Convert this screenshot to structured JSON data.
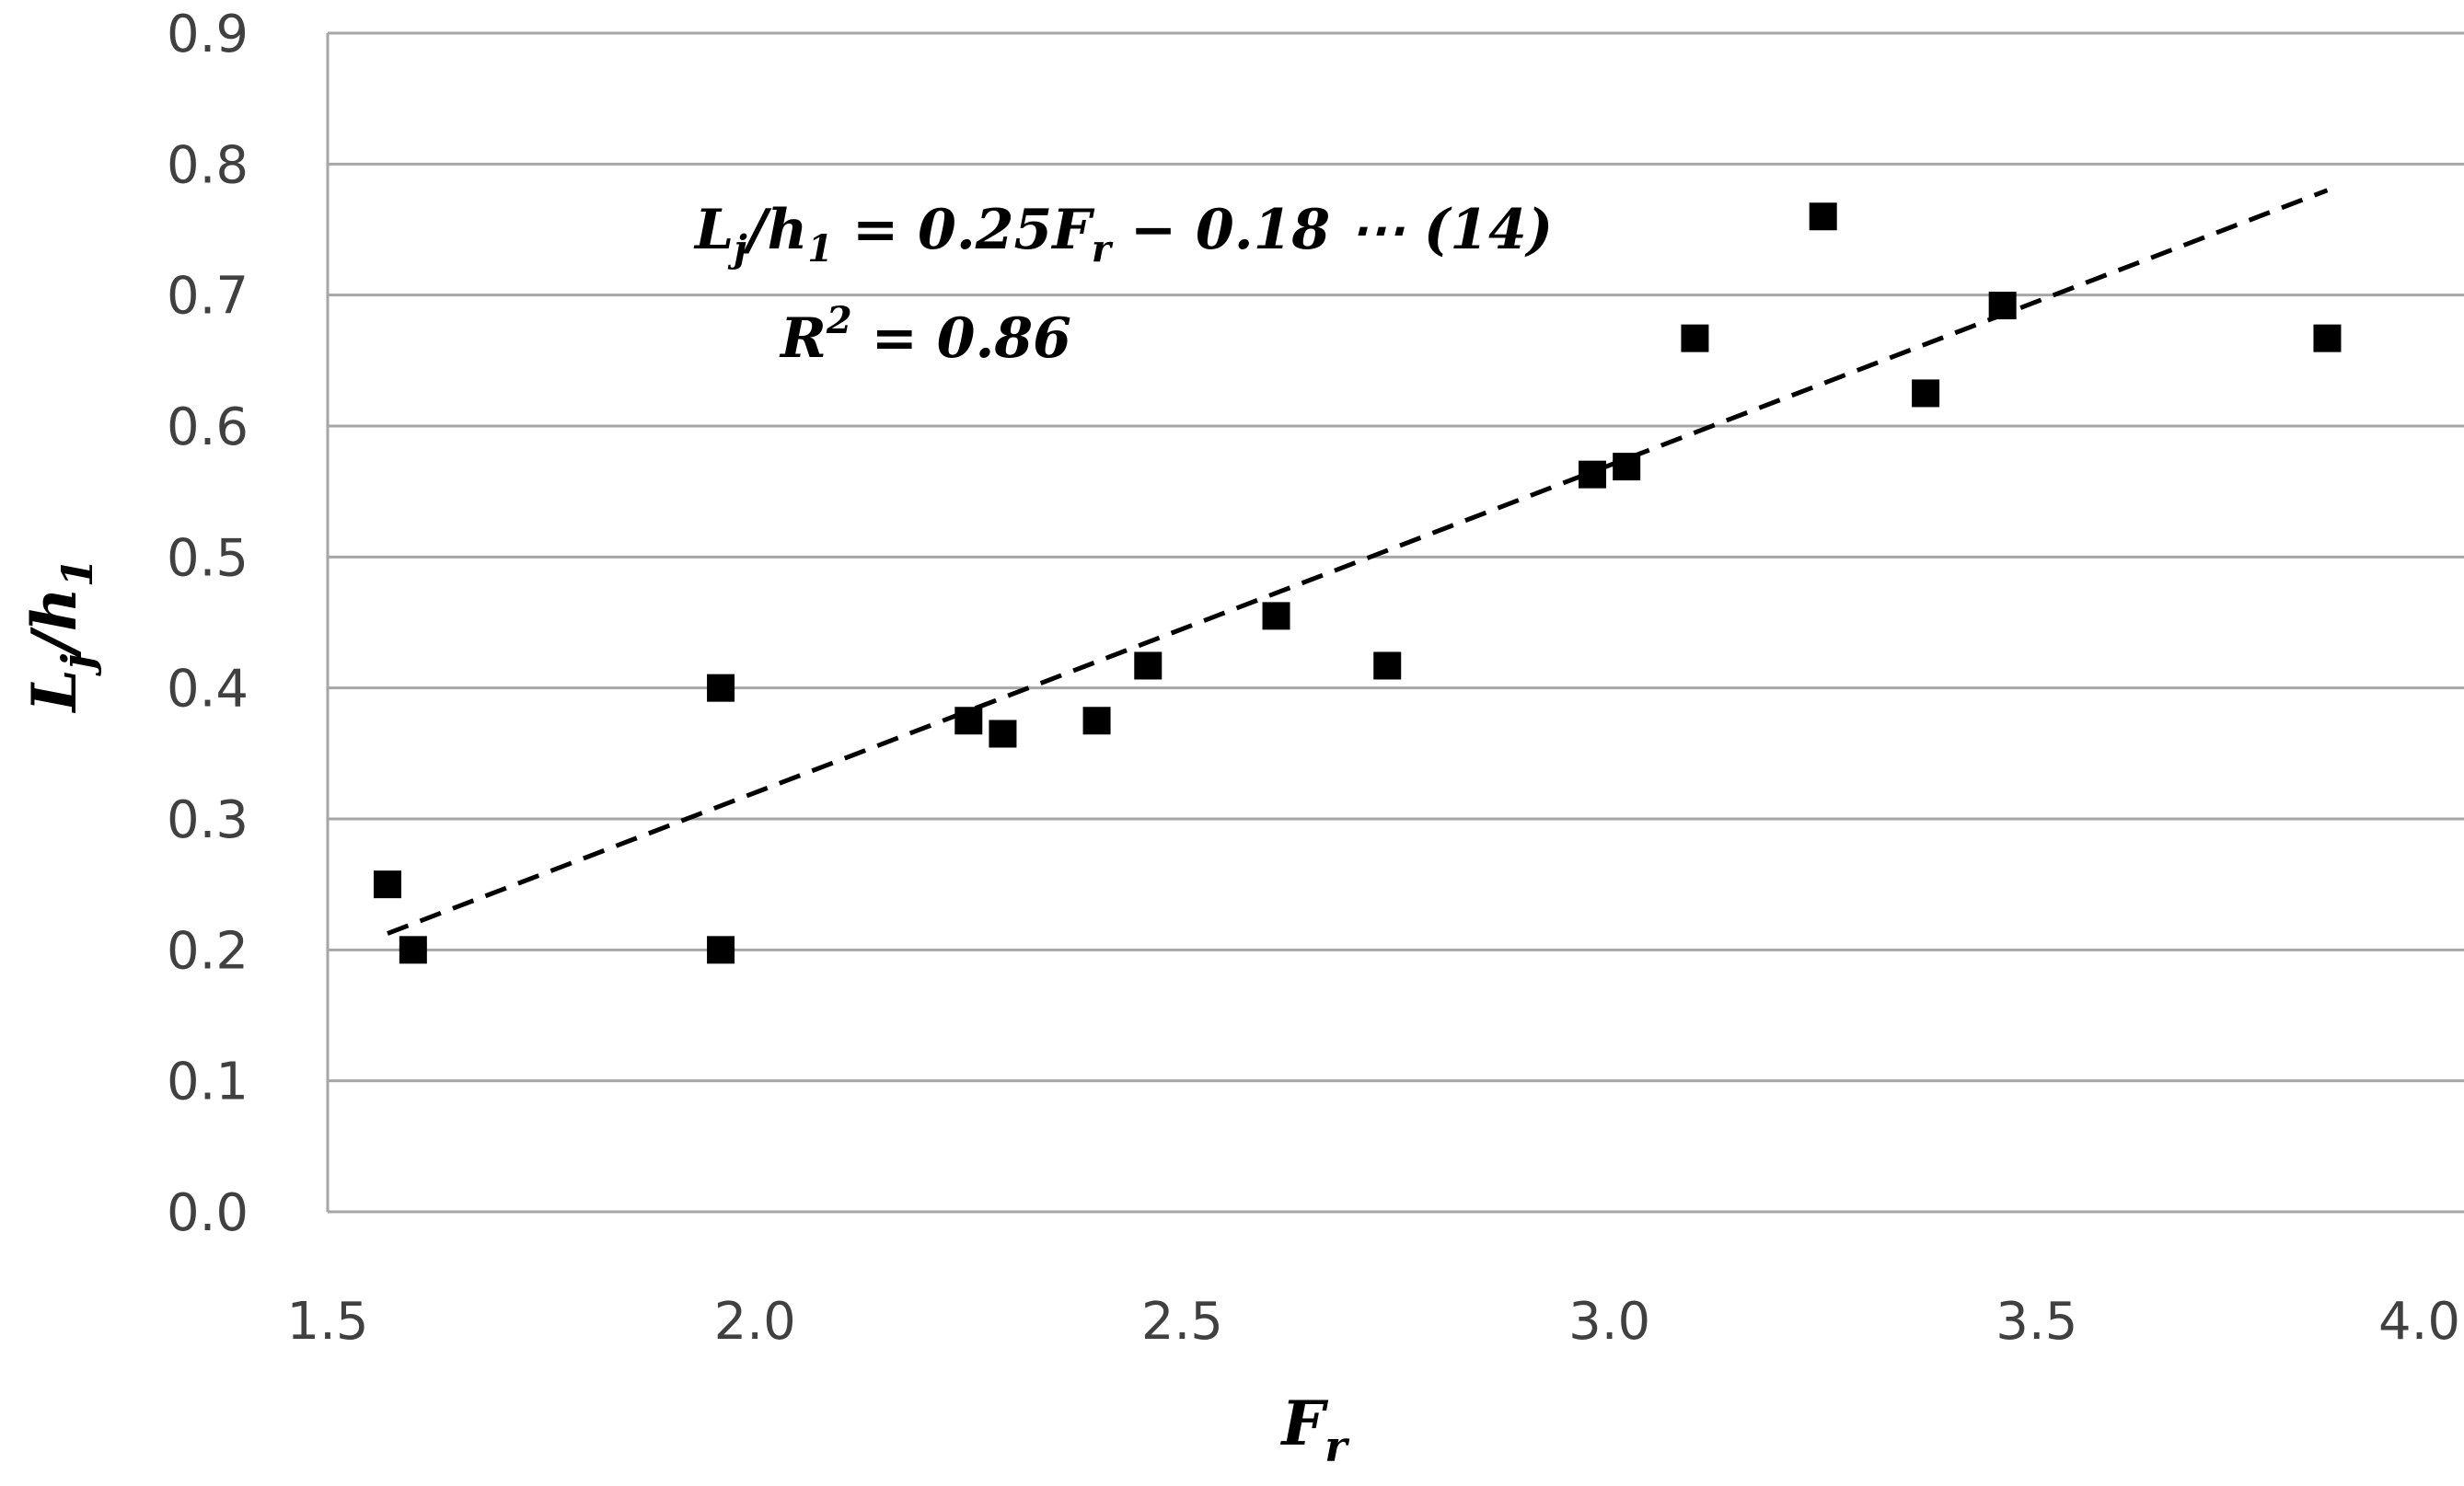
{
  "chart_data": {
    "type": "scatter",
    "xlim": [
      1.5,
      4.0
    ],
    "ylim": [
      0.0,
      0.9
    ],
    "x_ticks": [
      "1.5",
      "2.0",
      "2.5",
      "3.0",
      "3.5",
      "4.0"
    ],
    "y_ticks": [
      "0.0",
      "0.1",
      "0.2",
      "0.3",
      "0.4",
      "0.5",
      "0.6",
      "0.7",
      "0.8",
      "0.9"
    ],
    "grid": "horizontal",
    "x_label": {
      "main": "F",
      "sub": "r"
    },
    "y_label": {
      "main1": "L",
      "sub1": "j",
      "slash": "/",
      "main2": "h",
      "sub2": "1"
    },
    "annotation": {
      "eq": {
        "L": "L",
        "j": "j",
        "mid": "/",
        "h": "h",
        "one": "1",
        "coef": " = 0.25",
        "F": "F",
        "r": "r",
        "rest": " − 0.18 ⋯ (14)"
      },
      "r2": {
        "R": "R",
        "sup": "2",
        "rest": " = 0.86"
      }
    },
    "marker_color": "#000000",
    "x": [
      1.57,
      1.6,
      1.96,
      1.96,
      2.25,
      2.29,
      2.4,
      2.46,
      2.61,
      2.74,
      2.98,
      3.02,
      3.1,
      3.25,
      3.37,
      3.46,
      3.84
    ],
    "y": [
      0.25,
      0.2,
      0.4,
      0.2,
      0.375,
      0.365,
      0.375,
      0.417,
      0.455,
      0.417,
      0.563,
      0.569,
      0.667,
      0.76,
      0.625,
      0.692,
      0.667
    ],
    "trendline": {
      "slope": 0.25,
      "intercept": -0.18,
      "x_range": [
        1.57,
        3.84
      ],
      "style": "dashed"
    }
  }
}
